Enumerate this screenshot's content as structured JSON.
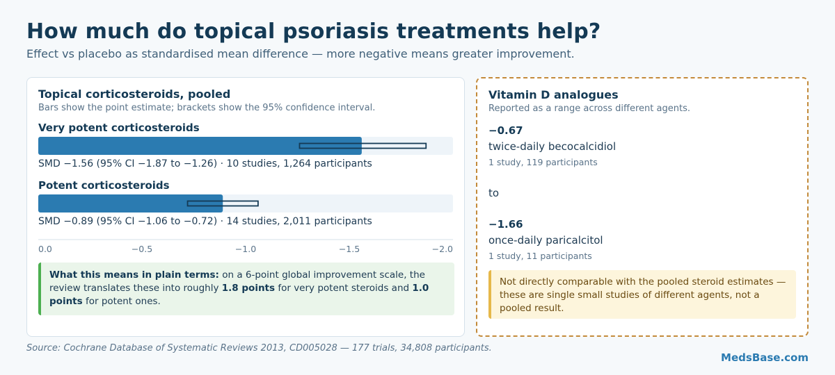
{
  "header": {
    "title": "How much do topical psoriasis treatments help?",
    "subtitle": "Effect vs placebo as standardised mean difference — more negative means greater improvement."
  },
  "left_panel": {
    "title": "Topical corticosteroids, pooled",
    "subtitle": "Bars show the point estimate; brackets show the 95% confidence interval.",
    "note_lead": "What this means in plain terms:",
    "note_text_1": " on a 6-point global improvement scale, the review translates these into roughly ",
    "note_value_1": "1.8 points",
    "note_text_2": " for very potent steroids and ",
    "note_value_2": "1.0 points",
    "note_text_3": " for potent ones."
  },
  "chart_data": {
    "type": "bar",
    "orientation": "horizontal",
    "categories": [
      "Very potent corticosteroids",
      "Potent corticosteroids"
    ],
    "values": [
      -1.56,
      -0.89
    ],
    "ci_low": [
      -1.87,
      -1.06
    ],
    "ci_high": [
      -1.26,
      -0.72
    ],
    "captions": [
      "SMD −1.56 (95% CI −1.87 to −1.26) · 10 studies, 1,264 participants",
      "SMD −0.89 (95% CI −1.06 to −0.72) · 14 studies, 2,011 participants"
    ],
    "xlim": [
      0,
      -2.0
    ],
    "x_ticks": [
      0,
      -0.5,
      -1.0,
      -1.5,
      -2.0
    ],
    "x_tick_labels": [
      "0.0",
      "−0.5",
      "−1.0",
      "−1.5",
      "−2.0"
    ],
    "colors": {
      "bar": "#2b7bb1",
      "track": "#eef4f9",
      "ci": "#143a55"
    }
  },
  "right_panel": {
    "title": "Vitamin D analogues",
    "subtitle": "Reported as a range across different agents.",
    "high": {
      "value": "−0.67",
      "agent": "twice-daily becocalcidiol",
      "studies": "1 study, 119 participants"
    },
    "connector": "to",
    "low": {
      "value": "−1.66",
      "agent": "once-daily paricalcitol",
      "studies": "1 study, 11 participants"
    },
    "warning": "Not directly comparable with the pooled steroid estimates — these are single small studies of different agents, not a pooled result."
  },
  "footer": {
    "source": "Source: Cochrane Database of Systematic Reviews 2013, CD005028 — 177 trials, 34,808 participants.",
    "brand": "MedsBase.com"
  }
}
